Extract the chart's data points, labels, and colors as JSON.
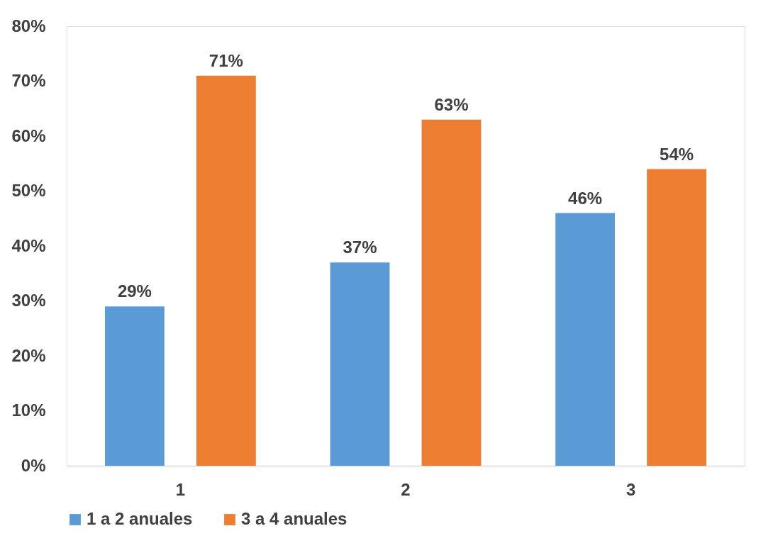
{
  "chart_data": {
    "type": "bar",
    "categories": [
      "1",
      "2",
      "3"
    ],
    "series": [
      {
        "name": "1 a 2 anuales",
        "color": "#5b9bd5",
        "values": [
          29,
          37,
          46
        ],
        "value_labels": [
          "29%",
          "37%",
          "46%"
        ]
      },
      {
        "name": "3 a 4 anuales",
        "color": "#ed7d31",
        "values": [
          71,
          63,
          54
        ],
        "value_labels": [
          "71%",
          "63%",
          "54%"
        ]
      }
    ],
    "ylim": [
      0,
      80
    ],
    "yticks": [
      {
        "value": 0,
        "label": "0%"
      },
      {
        "value": 10,
        "label": "10%"
      },
      {
        "value": 20,
        "label": "20%"
      },
      {
        "value": 30,
        "label": "30%"
      },
      {
        "value": 40,
        "label": "40%"
      },
      {
        "value": 50,
        "label": "50%"
      },
      {
        "value": 60,
        "label": "60%"
      },
      {
        "value": 70,
        "label": "70%"
      },
      {
        "value": 80,
        "label": "80%"
      }
    ],
    "grid": false,
    "legend": "bottom"
  }
}
